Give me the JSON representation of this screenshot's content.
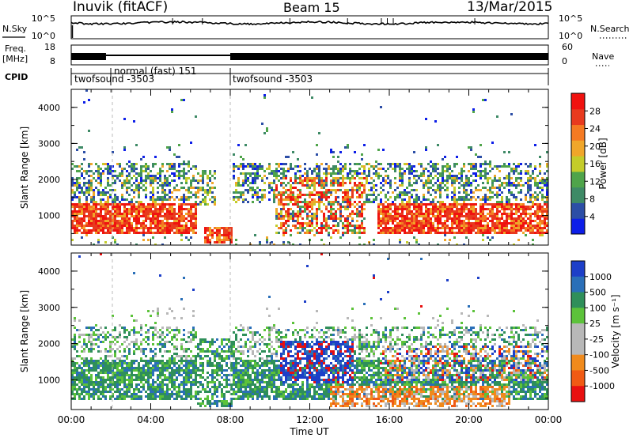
{
  "header": {
    "station": "Inuvik (fitACF)",
    "beam": "Beam 15",
    "date": "13/Mar/2015"
  },
  "strips": {
    "nsky_label": "N.Sky",
    "nsky_ticks": [
      "10^5",
      "10^0"
    ],
    "nsearch_label": "N.Search",
    "nsearch_ticks": [
      "10^5",
      "10^0"
    ],
    "freq_label_1": "Freq.",
    "freq_label_2": "[MHz]",
    "freq_ticks": [
      "18",
      "8"
    ],
    "nave_label": "Nave",
    "nave_ticks": [
      "60",
      "0"
    ],
    "cpid_label": "CPID",
    "cpid_segments": [
      {
        "label": "twofsound -3503",
        "start_hour": 0,
        "end_hour": 1.75
      },
      {
        "label": "normal (fast) 151",
        "start_hour": 1.75,
        "end_hour": 8.0
      },
      {
        "label": "twofsound -3503",
        "start_hour": 8.0,
        "end_hour": 24
      }
    ]
  },
  "chart_data": [
    {
      "type": "heatmap",
      "panel": "power",
      "x_unit": "hours UT, 13 Mar 2015",
      "xlim": [
        0,
        24
      ],
      "ylabel": "Slant Range [km]",
      "ylim": [
        180,
        4500
      ],
      "yticks": [
        "1000",
        "2000",
        "3000",
        "4000"
      ],
      "colorbar": {
        "label": "Power [dB]",
        "ticks": [
          "4",
          "8",
          "12",
          "16",
          "20",
          "24",
          "28"
        ],
        "colors": [
          "#0d1ee8",
          "#2c4ea6",
          "#3e8a66",
          "#4fa44a",
          "#c4cc2a",
          "#f0a62a",
          "#f57a22",
          "#e83a1e",
          "#f0120f"
        ]
      },
      "features": [
        {
          "t0": 0.0,
          "t1": 6.4,
          "r0": 600,
          "r1": 1300,
          "level": "strong"
        },
        {
          "t0": 6.5,
          "t1": 8.0,
          "r0": 300,
          "r1": 800,
          "level": "strong"
        },
        {
          "t0": 10.4,
          "t1": 14.6,
          "r0": 500,
          "r1": 2100,
          "level": "strong"
        },
        {
          "t0": 15.5,
          "t1": 24.0,
          "r0": 600,
          "r1": 1400,
          "level": "strong"
        },
        {
          "t0": 1.0,
          "t1": 22.5,
          "r0": 1500,
          "r1": 2500,
          "level": "medium"
        }
      ]
    },
    {
      "type": "heatmap",
      "panel": "velocity",
      "x_unit": "hours UT, 13 Mar 2015",
      "xlim": [
        0,
        24
      ],
      "xticks": [
        "00:00",
        "04:00",
        "08:00",
        "12:00",
        "16:00",
        "20:00",
        "00:00"
      ],
      "xlabel": "Time UT",
      "ylabel": "Slant Range [km]",
      "ylim": [
        180,
        4500
      ],
      "yticks": [
        "1000",
        "2000",
        "3000",
        "4000"
      ],
      "colorbar": {
        "label": "Velocity [m s⁻¹]",
        "ticks": [
          "1000",
          "500",
          "100",
          "25",
          "-25",
          "-100",
          "-500",
          "-1000"
        ],
        "colors": [
          "#1d3fc8",
          "#2a6fb8",
          "#2f8f5a",
          "#5cc23a",
          "#b8b8b8",
          "#b8b8b8",
          "#f08a1c",
          "#f05a14",
          "#e81010"
        ]
      },
      "features": [
        {
          "t0": 0.0,
          "t1": 9.0,
          "r0": 500,
          "r1": 1600,
          "level": "green"
        },
        {
          "t0": 10.5,
          "t1": 14.0,
          "r0": 900,
          "r1": 2100,
          "level": "blue"
        },
        {
          "t0": 13.0,
          "t1": 22.0,
          "r0": 300,
          "r1": 900,
          "level": "orange"
        },
        {
          "t0": 16.0,
          "t1": 24.0,
          "r0": 1000,
          "r1": 2000,
          "level": "mixed"
        }
      ]
    }
  ]
}
